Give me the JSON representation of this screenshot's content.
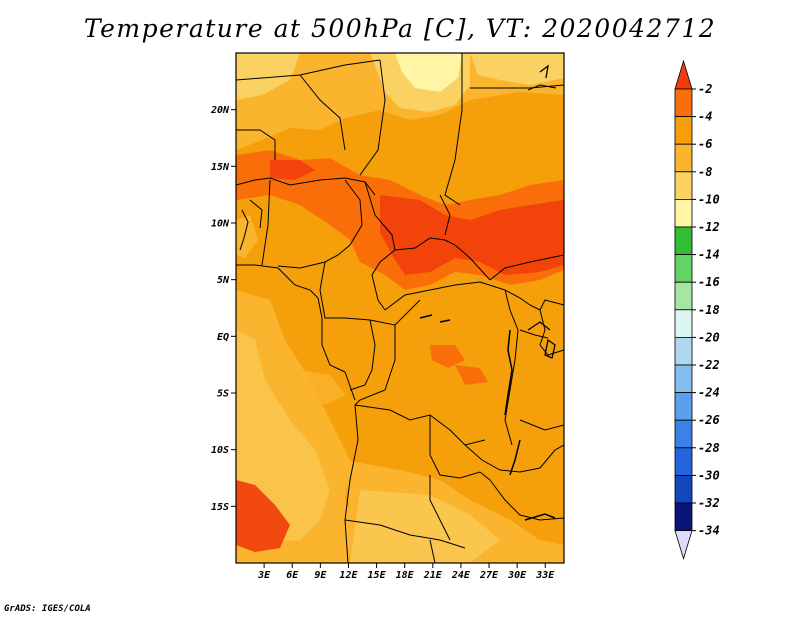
{
  "title": "Temperature at 500hPa [C], VT: 2020042712",
  "credit": "GrADS: IGES/COLA",
  "axes": {
    "lat_labels": [
      "20N",
      "15N",
      "10N",
      "5N",
      "EQ",
      "5S",
      "10S",
      "15S"
    ],
    "lat_values": [
      20,
      15,
      10,
      5,
      0,
      -5,
      -10,
      -15
    ],
    "lon_labels": [
      "3E",
      "6E",
      "9E",
      "12E",
      "15E",
      "18E",
      "21E",
      "24E",
      "27E",
      "30E",
      "33E"
    ],
    "lon_values": [
      3,
      6,
      9,
      12,
      15,
      18,
      21,
      24,
      27,
      30,
      33
    ],
    "lon_range": [
      0,
      35
    ],
    "lat_range": [
      -20,
      25
    ]
  },
  "colorbar": {
    "labels": [
      "-2",
      "-4",
      "-6",
      "-8",
      "-10",
      "-12",
      "-14",
      "-16",
      "-18",
      "-20",
      "-22",
      "-24",
      "-26",
      "-28",
      "-30",
      "-32",
      "-34"
    ],
    "colors": [
      "#f03c0a",
      "#fa6e0a",
      "#f5a00a",
      "#fab42d",
      "#fad264",
      "#fff5a5",
      "#32be32",
      "#64d264",
      "#a5e6a5",
      "#dcf5f5",
      "#afd7f0",
      "#82bef0",
      "#5aa0ee",
      "#3c82e6",
      "#2564dc",
      "#1446be",
      "#0a1478",
      "#dcdcfa"
    ]
  }
}
